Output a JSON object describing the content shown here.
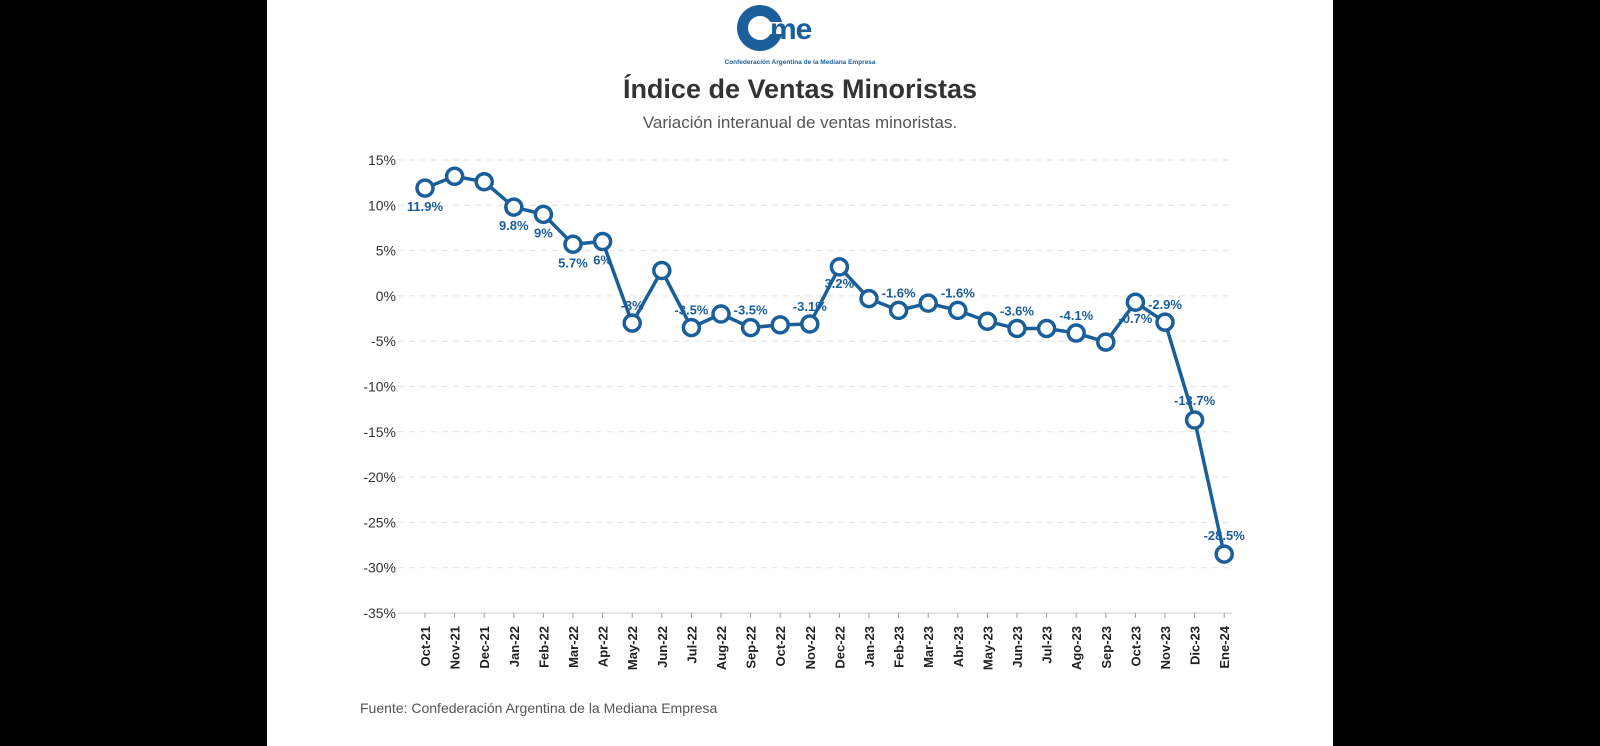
{
  "logo": {
    "text": "cme",
    "tagline": "Confederación Argentina de la Mediana Empresa"
  },
  "header": {
    "title": "Índice de Ventas Minoristas",
    "subtitle": "Variación interanual de ventas minoristas."
  },
  "footer": {
    "source": "Fuente: Confederación Argentina de la Mediana Empresa"
  },
  "colors": {
    "line": "#1a5e9a",
    "label": "#1a5e9a",
    "grid": "#e3e3e3"
  },
  "chart_data": {
    "type": "line",
    "title": "Índice de Ventas Minoristas",
    "subtitle": "Variación interanual de ventas minoristas.",
    "xlabel": "",
    "ylabel": "",
    "ylim": [
      -35,
      15
    ],
    "yticks": [
      15,
      10,
      5,
      0,
      -5,
      -10,
      -15,
      -20,
      -25,
      -30,
      -35
    ],
    "ytick_suffix": "%",
    "grid": true,
    "categories": [
      "Oct-21",
      "Nov-21",
      "Dec-21",
      "Jan-22",
      "Feb-22",
      "Mar-22",
      "Apr-22",
      "May-22",
      "Jun-22",
      "Jul-22",
      "Aug-22",
      "Sep-22",
      "Oct-22",
      "Nov-22",
      "Dec-22",
      "Jan-23",
      "Feb-23",
      "Mar-23",
      "Abr-23",
      "May-23",
      "Jun-23",
      "Jul-23",
      "Ago-23",
      "Sep-23",
      "Oct-23",
      "Nov-23",
      "Dic-23",
      "Ene-24"
    ],
    "series": [
      {
        "values": [
          11.9,
          13.2,
          12.6,
          9.8,
          9.0,
          5.7,
          6.0,
          -3.0,
          2.8,
          -3.5,
          -2.0,
          -3.5,
          -3.2,
          -3.1,
          3.2,
          -0.3,
          -1.6,
          -0.8,
          -1.6,
          -2.8,
          -3.6,
          -3.6,
          -4.1,
          -5.1,
          -0.7,
          -2.9,
          -13.7,
          -28.5
        ],
        "labels": [
          "11.9%",
          "",
          "",
          "9.8%",
          "9%",
          "5.7%",
          "6%",
          "-3%",
          "",
          "-3.5%",
          "",
          "-3.5%",
          "",
          "-3.1%",
          "3.2%",
          "",
          "-1.6%",
          "",
          "-1.6%",
          "",
          "-3.6%",
          "",
          "-4.1%",
          "",
          "-0.7%",
          "-2.9%",
          "-13.7%",
          "-28.5%"
        ]
      }
    ]
  }
}
